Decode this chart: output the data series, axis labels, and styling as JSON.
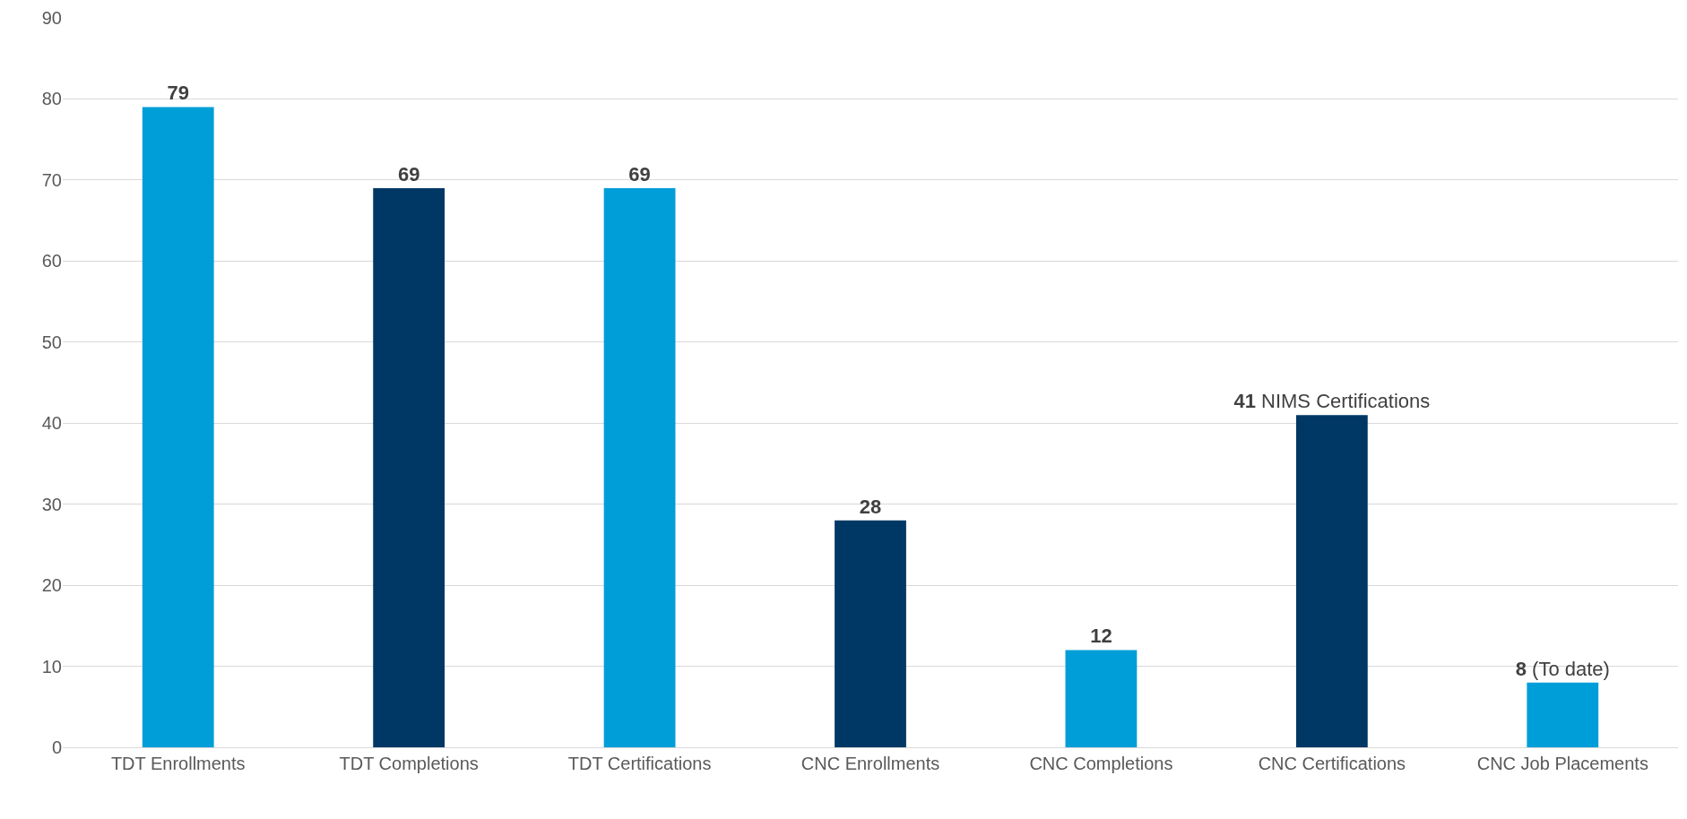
{
  "chart_data": {
    "type": "bar",
    "categories": [
      "TDT Enrollments",
      "TDT Completions",
      "TDT Certifications",
      "CNC Enrollments",
      "CNC Completions",
      "CNC Certifications",
      "CNC Job Placements"
    ],
    "values": [
      79,
      69,
      69,
      28,
      12,
      41,
      8
    ],
    "colors": [
      "#009ed8",
      "#003865",
      "#009ed8",
      "#003865",
      "#009ed8",
      "#003865",
      "#009ed8"
    ],
    "value_labels": [
      "79",
      "69",
      "69",
      "28",
      "12",
      "41 NIMS Certifications",
      "8 (To date)"
    ],
    "ylim": [
      0,
      90
    ],
    "yticks": [
      0,
      10,
      20,
      30,
      40,
      50,
      60,
      70,
      80,
      90
    ],
    "grid": "y"
  }
}
